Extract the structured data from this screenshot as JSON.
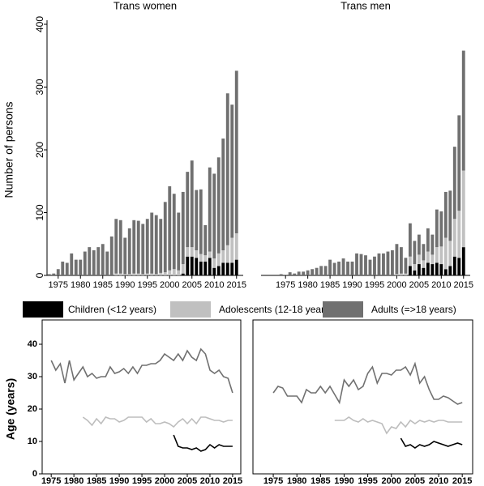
{
  "chart_data": [
    {
      "type": "bar",
      "title": "Trans women",
      "y_label": "Number of persons",
      "x": [
        1973,
        1974,
        1975,
        1976,
        1977,
        1978,
        1979,
        1980,
        1981,
        1982,
        1983,
        1984,
        1985,
        1986,
        1987,
        1988,
        1989,
        1990,
        1991,
        1992,
        1993,
        1994,
        1995,
        1996,
        1997,
        1998,
        1999,
        2000,
        2001,
        2002,
        2003,
        2004,
        2005,
        2006,
        2007,
        2008,
        2009,
        2010,
        2011,
        2012,
        2013,
        2014,
        2015
      ],
      "series": [
        {
          "name": "Children (<12 years)",
          "color": "#000000",
          "values": [
            0,
            0,
            0,
            0,
            0,
            0,
            0,
            0,
            0,
            0,
            0,
            0,
            0,
            0,
            0,
            0,
            0,
            0,
            0,
            0,
            0,
            0,
            0,
            0,
            0,
            0,
            0,
            0,
            0,
            0,
            3,
            30,
            30,
            28,
            22,
            22,
            28,
            12,
            15,
            20,
            20,
            20,
            25
          ]
        },
        {
          "name": "Adolescents (12-18 years)",
          "color": "#c0c0c0",
          "values": [
            0,
            0,
            0,
            0,
            0,
            0,
            0,
            0,
            0,
            0,
            0,
            0,
            0,
            0,
            0,
            3,
            3,
            2,
            2,
            3,
            3,
            2,
            3,
            3,
            2,
            4,
            5,
            8,
            10,
            8,
            15,
            15,
            15,
            12,
            12,
            10,
            10,
            15,
            20,
            20,
            28,
            40,
            42
          ]
        },
        {
          "name": "Adults (=>18 years)",
          "color": "#707070",
          "values": [
            2,
            3,
            10,
            22,
            20,
            35,
            25,
            25,
            38,
            45,
            40,
            45,
            50,
            38,
            62,
            87,
            85,
            58,
            73,
            85,
            84,
            80,
            87,
            97,
            94,
            86,
            112,
            134,
            120,
            92,
            115,
            120,
            138,
            96,
            103,
            48,
            134,
            135,
            153,
            178,
            242,
            212,
            259
          ]
        }
      ],
      "xlim": [
        1972.5,
        2016.5
      ],
      "xticks": [
        1975,
        1980,
        1985,
        1990,
        1995,
        2000,
        2005,
        2010,
        2015
      ],
      "ylim": [
        0,
        400
      ],
      "yticks": [
        0,
        100,
        200,
        300,
        400
      ]
    },
    {
      "type": "bar",
      "title": "Trans men",
      "x": [
        1973,
        1974,
        1975,
        1976,
        1977,
        1978,
        1979,
        1980,
        1981,
        1982,
        1983,
        1984,
        1985,
        1986,
        1987,
        1988,
        1989,
        1990,
        1991,
        1992,
        1993,
        1994,
        1995,
        1996,
        1997,
        1998,
        1999,
        2000,
        2001,
        2002,
        2003,
        2004,
        2005,
        2006,
        2007,
        2008,
        2009,
        2010,
        2011,
        2012,
        2013,
        2014,
        2015
      ],
      "series": [
        {
          "color": "#000000",
          "values": [
            0,
            0,
            0,
            0,
            0,
            0,
            0,
            0,
            0,
            0,
            0,
            0,
            0,
            0,
            0,
            0,
            0,
            0,
            0,
            0,
            0,
            0,
            0,
            0,
            0,
            0,
            0,
            0,
            0,
            0,
            15,
            8,
            18,
            12,
            20,
            18,
            20,
            18,
            10,
            15,
            30,
            28,
            45
          ]
        },
        {
          "color": "#c0c0c0",
          "values": [
            0,
            0,
            0,
            0,
            0,
            0,
            0,
            0,
            0,
            0,
            0,
            0,
            0,
            0,
            0,
            0,
            0,
            0,
            0,
            0,
            0,
            0,
            0,
            0,
            0,
            0,
            0,
            2,
            3,
            3,
            15,
            10,
            15,
            12,
            18,
            15,
            25,
            28,
            50,
            40,
            60,
            75,
            122
          ]
        },
        {
          "color": "#707070",
          "values": [
            0,
            2,
            1,
            5,
            3,
            6,
            6,
            8,
            10,
            12,
            15,
            15,
            25,
            20,
            22,
            27,
            22,
            22,
            35,
            34,
            32,
            25,
            30,
            35,
            35,
            38,
            40,
            48,
            42,
            25,
            53,
            37,
            32,
            26,
            37,
            32,
            60,
            56,
            73,
            80,
            115,
            152,
            191
          ]
        }
      ],
      "xlim": [
        1969.5,
        2016.5
      ],
      "xticks": [
        1975,
        1980,
        1985,
        1990,
        1995,
        2000,
        2005,
        2010,
        2015
      ],
      "ylim": [
        0,
        400
      ]
    },
    {
      "type": "line",
      "y_label": "Age (years)",
      "x": [
        1975,
        1976,
        1977,
        1978,
        1979,
        1980,
        1981,
        1982,
        1983,
        1984,
        1985,
        1986,
        1987,
        1988,
        1989,
        1990,
        1991,
        1992,
        1993,
        1994,
        1995,
        1996,
        1997,
        1998,
        1999,
        2000,
        2001,
        2002,
        2003,
        2004,
        2005,
        2006,
        2007,
        2008,
        2009,
        2010,
        2011,
        2012,
        2013,
        2014,
        2015
      ],
      "series": [
        {
          "color": "#707070",
          "values": [
            35,
            32,
            34,
            28,
            35,
            29,
            31,
            33,
            30,
            31,
            29.5,
            30,
            30,
            33,
            31,
            31.5,
            32.5,
            31,
            33,
            31,
            33.5,
            33.5,
            34,
            34,
            35,
            37,
            36,
            35,
            37,
            35,
            38,
            36,
            35,
            38.5,
            37,
            32,
            31,
            32,
            30,
            29.5,
            25
          ]
        },
        {
          "color": "#bdbdbd",
          "values": [
            null,
            null,
            null,
            null,
            null,
            null,
            null,
            17.5,
            16.5,
            15,
            17,
            15.5,
            17.5,
            17,
            17,
            16,
            16.5,
            17.5,
            17.5,
            17.5,
            17.5,
            16,
            17,
            15.5,
            15.5,
            16,
            15.5,
            14.5,
            16,
            17,
            15.5,
            17,
            15.5,
            17.5,
            17.5,
            17,
            16.5,
            16.5,
            16,
            16.5,
            16.5
          ]
        },
        {
          "color": "#000000",
          "values": [
            null,
            null,
            null,
            null,
            null,
            null,
            null,
            null,
            null,
            null,
            null,
            null,
            null,
            null,
            null,
            null,
            null,
            null,
            null,
            null,
            null,
            null,
            null,
            null,
            null,
            null,
            null,
            12,
            8.5,
            8,
            8,
            7.5,
            8,
            7,
            7.5,
            9,
            8,
            9,
            8.5,
            8.5,
            8.5
          ]
        }
      ],
      "xlim": [
        1973,
        2016.8
      ],
      "xticks": [
        1975,
        1980,
        1985,
        1990,
        1995,
        2000,
        2005,
        2010,
        2015
      ],
      "ylim": [
        0,
        40
      ],
      "yticks": [
        0,
        10,
        20,
        30,
        40
      ]
    },
    {
      "type": "line",
      "x": [
        1975,
        1976,
        1977,
        1978,
        1979,
        1980,
        1981,
        1982,
        1983,
        1984,
        1985,
        1986,
        1987,
        1988,
        1989,
        1990,
        1991,
        1992,
        1993,
        1994,
        1995,
        1996,
        1997,
        1998,
        1999,
        2000,
        2001,
        2002,
        2003,
        2004,
        2005,
        2006,
        2007,
        2008,
        2009,
        2010,
        2011,
        2012,
        2013,
        2014,
        2015
      ],
      "series": [
        {
          "color": "#707070",
          "values": [
            25,
            27,
            26.5,
            24,
            24,
            24,
            22,
            26,
            25,
            25,
            27,
            25,
            27,
            24.5,
            22,
            29,
            27,
            29,
            26,
            27,
            31,
            33,
            28,
            31,
            31,
            30.5,
            32,
            32,
            33,
            30.5,
            34,
            28,
            30,
            26,
            23,
            23,
            24,
            23.5,
            22.5,
            21.5,
            22
          ]
        },
        {
          "color": "#bdbdbd",
          "values": [
            null,
            null,
            null,
            null,
            null,
            null,
            null,
            null,
            null,
            null,
            null,
            null,
            null,
            16.5,
            16.5,
            16.5,
            17.5,
            16.5,
            16,
            17,
            16,
            16.5,
            16,
            15.5,
            12.5,
            14.5,
            14,
            16,
            14.5,
            16.5,
            15.5,
            16.5,
            16,
            16.5,
            16,
            16.5,
            16.5,
            16,
            16,
            16,
            16
          ]
        },
        {
          "color": "#000000",
          "values": [
            null,
            null,
            null,
            null,
            null,
            null,
            null,
            null,
            null,
            null,
            null,
            null,
            null,
            null,
            null,
            null,
            null,
            null,
            null,
            null,
            null,
            null,
            null,
            null,
            null,
            null,
            null,
            11,
            8.5,
            9,
            8,
            9,
            8.5,
            9,
            10,
            9.5,
            9,
            8.5,
            9,
            9.5,
            9
          ]
        }
      ],
      "xlim": [
        1970.7,
        2017.2
      ],
      "xticks": [
        1975,
        1980,
        1985,
        1990,
        1995,
        2000,
        2005,
        2010,
        2015
      ],
      "ylim": [
        0,
        40
      ]
    }
  ]
}
